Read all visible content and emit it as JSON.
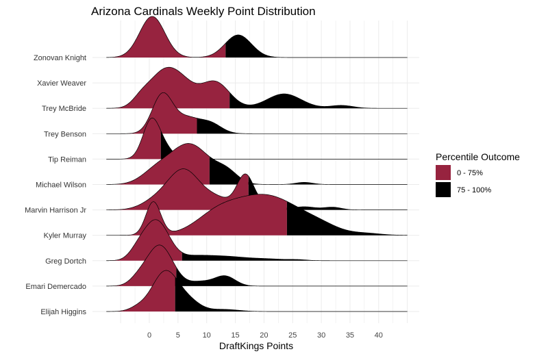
{
  "chart_data": {
    "type": "ridgeline",
    "title": "Arizona Cardinals Weekly Point Distribution",
    "xlabel": "DraftKings Points",
    "ylabel": "",
    "x_ticks": [
      0,
      5,
      10,
      15,
      20,
      25,
      30,
      35,
      40
    ],
    "xlim": [
      -7.5,
      45
    ],
    "grid": true,
    "legend": {
      "title": "Percentile Outcome",
      "position": "right",
      "items": [
        {
          "label": "0 - 75%",
          "color": "#97233F"
        },
        {
          "label": "75 - 100%",
          "color": "#000000"
        }
      ]
    },
    "colors": {
      "low": "#97233F",
      "high": "#000000"
    },
    "series": [
      {
        "name": "Zonovan Knight",
        "has_data": true,
        "x_range": [
          -7.5,
          45
        ],
        "p75": 13.3,
        "peaks": [
          [
            0.5,
            2.2,
            1.0
          ],
          [
            15.5,
            2.3,
            0.55
          ]
        ]
      },
      {
        "name": "Xavier Weaver",
        "has_data": false
      },
      {
        "name": "Trey McBride",
        "has_data": true,
        "x_range": [
          -7.5,
          45
        ],
        "p75": 14.0,
        "peaks": [
          [
            2.0,
            2.5,
            0.5
          ],
          [
            5.5,
            2.5,
            0.4
          ],
          [
            11.5,
            2.5,
            0.45
          ],
          [
            23.5,
            3.0,
            0.25
          ],
          [
            33.5,
            2.0,
            0.05
          ],
          [
            -1.5,
            1.5,
            0.12
          ]
        ]
      },
      {
        "name": "Trey Benson",
        "has_data": true,
        "x_range": [
          -7.5,
          45
        ],
        "p75": 8.3,
        "peaks": [
          [
            2.3,
            1.8,
            1.1
          ],
          [
            6.5,
            2.0,
            0.4
          ],
          [
            10.5,
            2.0,
            0.3
          ]
        ]
      },
      {
        "name": "Tip Reiman",
        "has_data": true,
        "x_range": [
          -7.5,
          45
        ],
        "p75": 2.0,
        "peaks": [
          [
            0.4,
            1.5,
            1.25
          ],
          [
            3.0,
            1.4,
            0.25
          ]
        ]
      },
      {
        "name": "Michael Wilson",
        "has_data": true,
        "x_range": [
          -7.5,
          45
        ],
        "p75": 10.5,
        "peaks": [
          [
            7.0,
            3.5,
            0.75
          ],
          [
            1.0,
            2.5,
            0.2
          ],
          [
            13.5,
            2.0,
            0.2
          ],
          [
            27.0,
            1.5,
            0.04
          ]
        ]
      },
      {
        "name": "Marvin Harrison Jr",
        "has_data": true,
        "x_range": [
          -7.5,
          45
        ],
        "p75": 17.3,
        "peaks": [
          [
            6.0,
            2.8,
            0.75
          ],
          [
            16.8,
            1.5,
            0.65
          ],
          [
            12.0,
            2.5,
            0.2
          ],
          [
            21.0,
            1.5,
            0.15
          ],
          [
            27.0,
            2.0,
            0.06
          ],
          [
            32.0,
            1.5,
            0.05
          ],
          [
            1.0,
            2.5,
            0.15
          ]
        ]
      },
      {
        "name": "Kyler Murray",
        "has_data": true,
        "x_range": [
          -7.5,
          45
        ],
        "p75": 24.0,
        "peaks": [
          [
            0.7,
            1.3,
            0.45
          ],
          [
            20.0,
            6.5,
            0.55
          ],
          [
            11.5,
            3.5,
            0.15
          ],
          [
            30.0,
            3.0,
            0.05
          ],
          [
            38.0,
            2.5,
            0.02
          ]
        ]
      },
      {
        "name": "Greg Dortch",
        "has_data": true,
        "x_range": [
          -7.5,
          45
        ],
        "p75": 5.7,
        "peaks": [
          [
            1.2,
            2.2,
            1.05
          ],
          [
            -2.0,
            1.5,
            0.2
          ],
          [
            8.0,
            3.0,
            0.12
          ],
          [
            13.5,
            3.0,
            0.09
          ],
          [
            20.0,
            3.5,
            0.05
          ],
          [
            26.0,
            1.5,
            0.02
          ]
        ]
      },
      {
        "name": "Emari Demercado",
        "has_data": true,
        "x_range": [
          -7.5,
          45
        ],
        "p75": 4.7,
        "peaks": [
          [
            1.8,
            2.3,
            1.15
          ],
          [
            13.2,
            1.8,
            0.28
          ],
          [
            9.0,
            2.0,
            0.12
          ],
          [
            -2.0,
            1.5,
            0.15
          ]
        ]
      },
      {
        "name": "Elijah Higgins",
        "has_data": true,
        "x_range": [
          -7.5,
          45
        ],
        "p75": 4.5,
        "peaks": [
          [
            2.8,
            2.3,
            1.15
          ],
          [
            7.0,
            2.0,
            0.25
          ],
          [
            13.0,
            2.5,
            0.06
          ],
          [
            -2.0,
            1.5,
            0.1
          ]
        ]
      }
    ]
  }
}
